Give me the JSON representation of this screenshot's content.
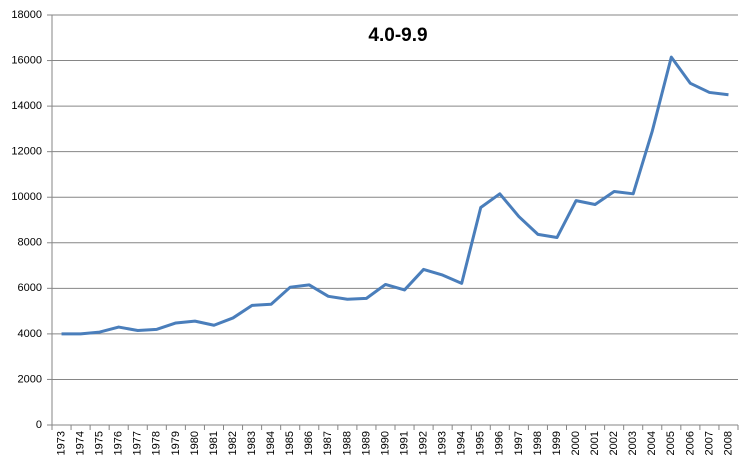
{
  "chart_data": {
    "type": "line",
    "title": "4.0-9.9",
    "categories": [
      "1973",
      "1974",
      "1975",
      "1976",
      "1977",
      "1978",
      "1979",
      "1980",
      "1981",
      "1982",
      "1983",
      "1984",
      "1985",
      "1986",
      "1987",
      "1988",
      "1989",
      "1990",
      "1991",
      "1992",
      "1993",
      "1994",
      "1995",
      "1996",
      "1997",
      "1998",
      "1999",
      "2000",
      "2001",
      "2002",
      "2003",
      "2004",
      "2005",
      "2006",
      "2007",
      "2008"
    ],
    "values": [
      4000,
      4000,
      4080,
      4300,
      4150,
      4200,
      4480,
      4560,
      4380,
      4700,
      5250,
      5300,
      6050,
      6150,
      5650,
      5520,
      5560,
      6170,
      5930,
      6830,
      6580,
      6220,
      9550,
      10150,
      9150,
      8370,
      8230,
      9850,
      9680,
      10250,
      10150,
      12900,
      16150,
      15000,
      14600,
      14500
    ],
    "color": "#4a7ebb",
    "ylim": [
      0,
      18000
    ],
    "yticks": [
      0,
      2000,
      4000,
      6000,
      8000,
      10000,
      12000,
      14000,
      16000,
      18000
    ],
    "grid": true
  }
}
